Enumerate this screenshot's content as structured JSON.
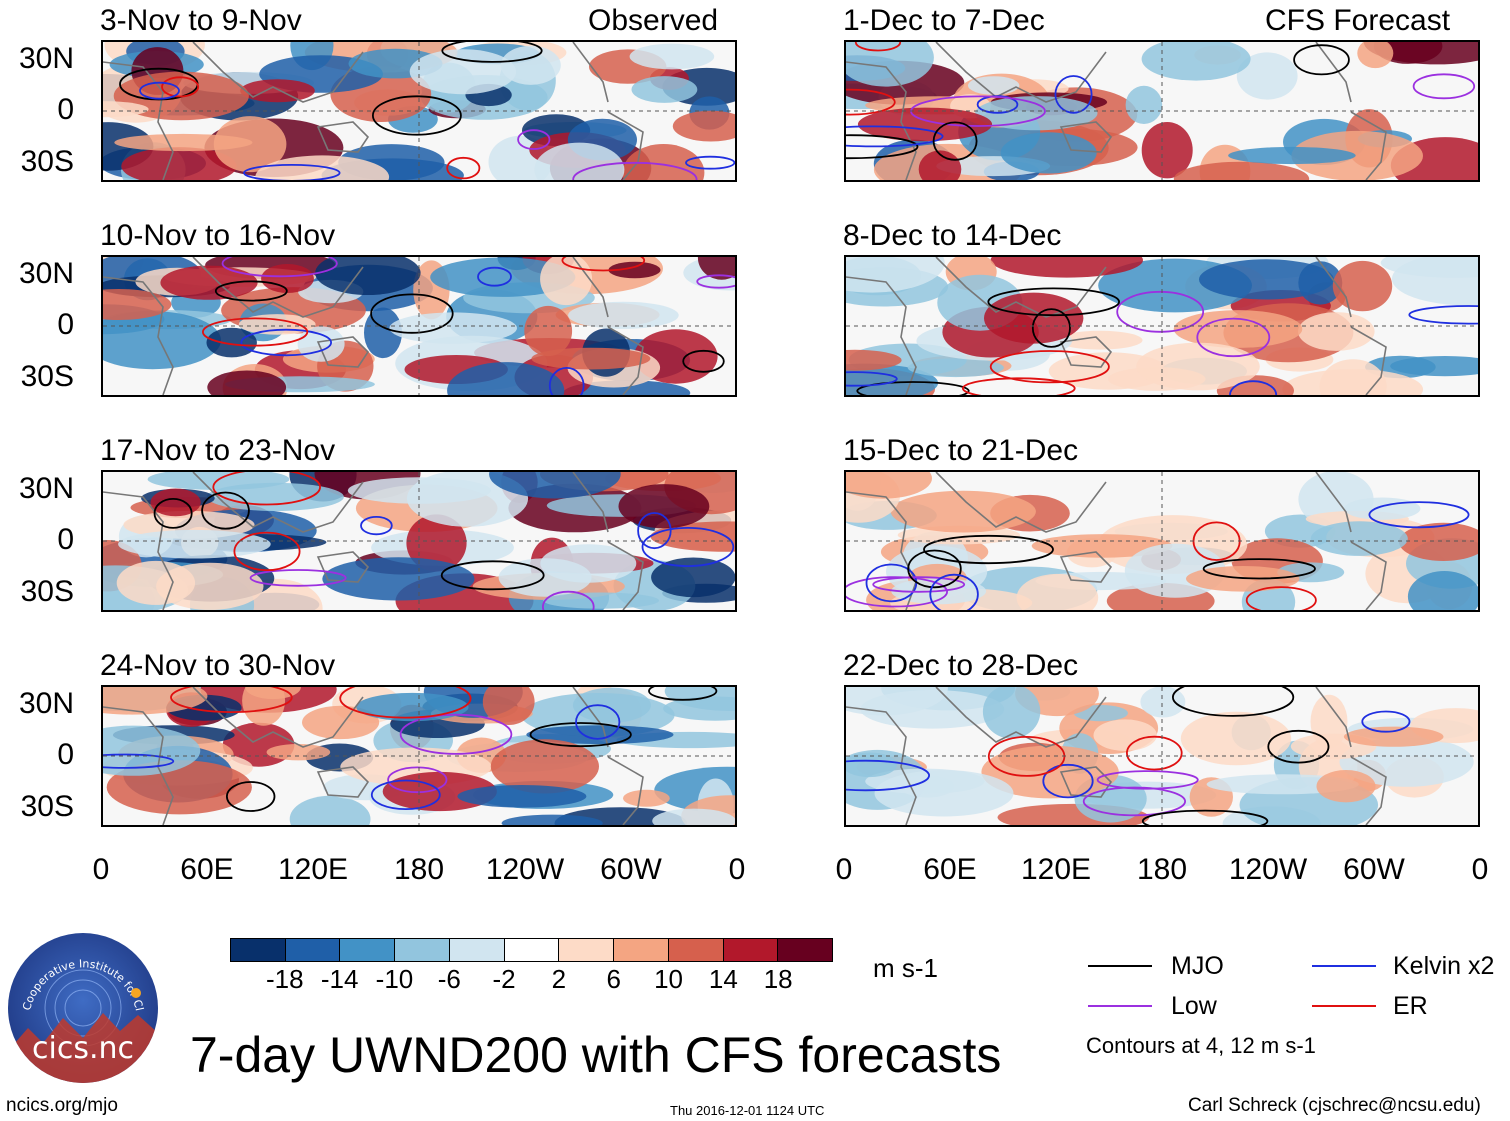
{
  "chart_data": {
    "type": "heatmap",
    "title": "7-day UWND200 with CFS forecasts",
    "units": "m s-1",
    "column_headers": {
      "observed": "Observed",
      "forecast": "CFS Forecast"
    },
    "y_tick_labels": [
      "30N",
      "0",
      "30S"
    ],
    "x_tick_labels": [
      "0",
      "60E",
      "120E",
      "180",
      "120W",
      "60W",
      "0"
    ],
    "panels": [
      {
        "title": "3-Nov to 9-Nov",
        "kind": "observed"
      },
      {
        "title": "10-Nov to 16-Nov",
        "kind": "observed"
      },
      {
        "title": "17-Nov to 23-Nov",
        "kind": "observed"
      },
      {
        "title": "24-Nov to 30-Nov",
        "kind": "observed"
      },
      {
        "title": "1-Dec to 7-Dec",
        "kind": "forecast"
      },
      {
        "title": "8-Dec to 14-Dec",
        "kind": "forecast"
      },
      {
        "title": "15-Dec to 21-Dec",
        "kind": "forecast"
      },
      {
        "title": "22-Dec to 28-Dec",
        "kind": "forecast"
      }
    ],
    "colorbar": {
      "ticks": [
        "-18",
        "-14",
        "-10",
        "-6",
        "-2",
        "2",
        "6",
        "10",
        "14",
        "18"
      ],
      "colors": [
        "#08306b",
        "#1f5fa8",
        "#4292c6",
        "#92c5de",
        "#d1e5f0",
        "#ffffff",
        "#fddbc7",
        "#f4a582",
        "#d6604d",
        "#b2182b",
        "#67001f"
      ]
    },
    "legend": [
      {
        "label": "MJO",
        "color": "#000000"
      },
      {
        "label": "Kelvin x2",
        "color": "#1f2fe0"
      },
      {
        "label": "Low",
        "color": "#9b30e0"
      },
      {
        "label": "ER",
        "color": "#e01010"
      }
    ],
    "contour_note": "Contours at 4, 12 m s-1"
  },
  "logo": {
    "text": "cics.nc",
    "ring_text": "Cooperative Institute for Climate and Satellites"
  },
  "footer": {
    "left": "ncics.org/mjo",
    "center": "Thu 2016-12-01 1124 UTC",
    "right": "Carl Schreck (cjschrec@ncsu.edu)"
  }
}
